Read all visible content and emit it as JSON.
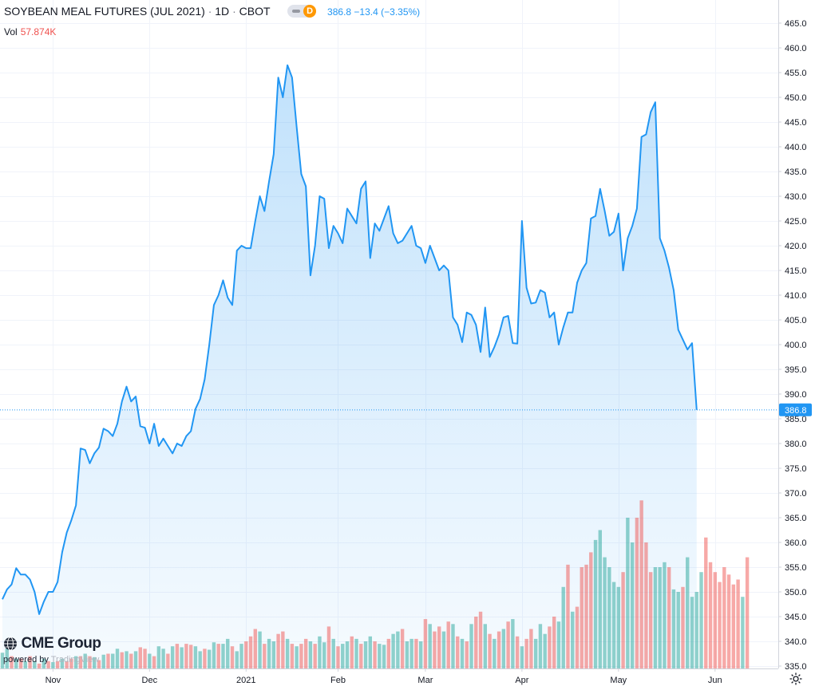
{
  "header": {
    "symbol": "SOYBEAN MEAL FUTURES (JUL 2021)",
    "interval": "1D",
    "exchange": "CBOT",
    "badge_letter": "D",
    "last": "386.8",
    "change": "−13.4",
    "change_pct": "(−3.35%)",
    "vol_label": "Vol",
    "vol_value": "57.874K"
  },
  "branding": {
    "logo_text": "CME Group",
    "powered_by": "powered by",
    "tradingview": "TradingView"
  },
  "colors": {
    "line": "#2196f3",
    "volume_up": "#26a69a",
    "volume_down": "#ef5350",
    "grid": "#f0f3fa"
  },
  "chart_data": {
    "type": "area",
    "title": "",
    "ylim": [
      334,
      467
    ],
    "grid": true,
    "y_ticks": [
      335,
      340,
      345,
      350,
      355,
      360,
      365,
      370,
      375,
      380,
      385,
      390,
      395,
      400,
      405,
      410,
      415,
      420,
      425,
      430,
      435,
      440,
      445,
      450,
      455,
      460,
      465
    ],
    "x_ticks": [
      "Nov",
      "Dec",
      "2021",
      "Feb",
      "Mar",
      "Apr",
      "May",
      "Jun"
    ],
    "x_tick_index": [
      11,
      32,
      53,
      73,
      92,
      113,
      134,
      155
    ],
    "last_value_label": "386.8",
    "series": [
      {
        "values": [
          348.5,
          350.5,
          351.5,
          354.8,
          353.5,
          353.5,
          352.5,
          350.0,
          345.5,
          348.0,
          350.0,
          350.0,
          352.0,
          358.0,
          362.0,
          364.5,
          367.5,
          379.0,
          378.7,
          376.0,
          378.0,
          379.2,
          383.0,
          382.5,
          381.5,
          384.0,
          388.5,
          391.5,
          388.5,
          389.5,
          383.5,
          383.2,
          380.0,
          384.0,
          379.5,
          381.0,
          379.5,
          378.0,
          380.0,
          379.5,
          381.5,
          382.5,
          387.0,
          389.0,
          393.0,
          400.0,
          408.0,
          410.0,
          413.0,
          409.5,
          408.0,
          419.0,
          420.0,
          419.5,
          419.5,
          425.0,
          430.0,
          427.0,
          433.0,
          438.5,
          454.0,
          450.0,
          456.5,
          454.0,
          444.0,
          434.5,
          432.0,
          414.0,
          420.0,
          430.0,
          429.5,
          419.5,
          424.0,
          422.5,
          420.5,
          427.5,
          426.0,
          424.5,
          431.5,
          433.0,
          417.5,
          424.5,
          423.0,
          425.5,
          428.0,
          422.5,
          420.5,
          421.0,
          422.5,
          424.0,
          420.0,
          419.5,
          416.5,
          420.0,
          417.5,
          415.0,
          416.0,
          415.0,
          405.5,
          404.0,
          400.5,
          406.5,
          406.0,
          404.0,
          398.5,
          407.5,
          397.5,
          399.5,
          402.0,
          405.5,
          405.8,
          400.3,
          400.2,
          425.0,
          411.5,
          408.3,
          408.5,
          411.0,
          410.5,
          405.5,
          406.5,
          400.0,
          403.5,
          406.5,
          406.5,
          412.5,
          415.0,
          416.5,
          425.5,
          426.0,
          431.5,
          427.0,
          422.0,
          422.8,
          426.5,
          415.0,
          421.5,
          424.0,
          427.5,
          442.0,
          442.5,
          447.0,
          449.0,
          421.5,
          419.0,
          415.5,
          411.0,
          403.0,
          401.0,
          399.0,
          400.3,
          386.8
        ]
      }
    ],
    "volume": [
      {
        "v": 337.7,
        "up": true
      },
      {
        "v": 338.5,
        "up": true
      },
      {
        "v": 337.0,
        "up": false
      },
      {
        "v": 336.5,
        "up": true
      },
      {
        "v": 336.5,
        "up": false
      },
      {
        "v": 336.0,
        "up": true
      },
      {
        "v": 337.0,
        "up": false
      },
      {
        "v": 336.0,
        "up": true
      },
      {
        "v": 335.5,
        "up": false
      },
      {
        "v": 336.5,
        "up": true
      },
      {
        "v": 336.0,
        "up": false
      },
      {
        "v": 335.8,
        "up": true
      },
      {
        "v": 336.0,
        "up": false
      },
      {
        "v": 336.5,
        "up": true
      },
      {
        "v": 336.0,
        "up": false
      },
      {
        "v": 336.5,
        "up": false
      },
      {
        "v": 337.0,
        "up": true
      },
      {
        "v": 337.0,
        "up": false
      },
      {
        "v": 337.5,
        "up": true
      },
      {
        "v": 337.0,
        "up": false
      },
      {
        "v": 336.8,
        "up": true
      },
      {
        "v": 336.2,
        "up": false
      },
      {
        "v": 337.3,
        "up": true
      },
      {
        "v": 337.5,
        "up": false
      },
      {
        "v": 337.5,
        "up": true
      },
      {
        "v": 338.5,
        "up": true
      },
      {
        "v": 337.8,
        "up": false
      },
      {
        "v": 338.0,
        "up": true
      },
      {
        "v": 337.5,
        "up": false
      },
      {
        "v": 338.0,
        "up": true
      },
      {
        "v": 338.8,
        "up": false
      },
      {
        "v": 338.5,
        "up": false
      },
      {
        "v": 337.5,
        "up": true
      },
      {
        "v": 337.0,
        "up": false
      },
      {
        "v": 339.0,
        "up": true
      },
      {
        "v": 338.5,
        "up": true
      },
      {
        "v": 337.5,
        "up": false
      },
      {
        "v": 339.0,
        "up": true
      },
      {
        "v": 339.5,
        "up": false
      },
      {
        "v": 338.8,
        "up": true
      },
      {
        "v": 339.5,
        "up": false
      },
      {
        "v": 339.3,
        "up": false
      },
      {
        "v": 339.0,
        "up": true
      },
      {
        "v": 338.0,
        "up": true
      },
      {
        "v": 338.5,
        "up": false
      },
      {
        "v": 338.3,
        "up": true
      },
      {
        "v": 339.8,
        "up": true
      },
      {
        "v": 339.5,
        "up": false
      },
      {
        "v": 339.5,
        "up": true
      },
      {
        "v": 340.5,
        "up": true
      },
      {
        "v": 339.0,
        "up": false
      },
      {
        "v": 338.0,
        "up": true
      },
      {
        "v": 339.5,
        "up": true
      },
      {
        "v": 340.0,
        "up": false
      },
      {
        "v": 341.0,
        "up": false
      },
      {
        "v": 342.5,
        "up": false
      },
      {
        "v": 342.0,
        "up": true
      },
      {
        "v": 339.5,
        "up": false
      },
      {
        "v": 340.5,
        "up": true
      },
      {
        "v": 340.0,
        "up": true
      },
      {
        "v": 341.5,
        "up": false
      },
      {
        "v": 342.0,
        "up": false
      },
      {
        "v": 340.5,
        "up": true
      },
      {
        "v": 339.5,
        "up": false
      },
      {
        "v": 339.0,
        "up": true
      },
      {
        "v": 339.5,
        "up": false
      },
      {
        "v": 340.5,
        "up": false
      },
      {
        "v": 340.0,
        "up": true
      },
      {
        "v": 339.5,
        "up": false
      },
      {
        "v": 341.0,
        "up": true
      },
      {
        "v": 339.8,
        "up": true
      },
      {
        "v": 343.0,
        "up": false
      },
      {
        "v": 340.5,
        "up": true
      },
      {
        "v": 339.0,
        "up": false
      },
      {
        "v": 339.5,
        "up": true
      },
      {
        "v": 340.0,
        "up": true
      },
      {
        "v": 341.0,
        "up": false
      },
      {
        "v": 340.5,
        "up": true
      },
      {
        "v": 339.5,
        "up": false
      },
      {
        "v": 340.0,
        "up": true
      },
      {
        "v": 341.0,
        "up": true
      },
      {
        "v": 340.0,
        "up": false
      },
      {
        "v": 339.5,
        "up": true
      },
      {
        "v": 339.3,
        "up": true
      },
      {
        "v": 340.5,
        "up": false
      },
      {
        "v": 341.5,
        "up": true
      },
      {
        "v": 342.0,
        "up": true
      },
      {
        "v": 342.5,
        "up": false
      },
      {
        "v": 340.0,
        "up": true
      },
      {
        "v": 340.5,
        "up": true
      },
      {
        "v": 340.5,
        "up": false
      },
      {
        "v": 340.0,
        "up": true
      },
      {
        "v": 344.5,
        "up": false
      },
      {
        "v": 343.5,
        "up": true
      },
      {
        "v": 342.0,
        "up": false
      },
      {
        "v": 343.0,
        "up": false
      },
      {
        "v": 342.0,
        "up": true
      },
      {
        "v": 344.0,
        "up": false
      },
      {
        "v": 343.5,
        "up": true
      },
      {
        "v": 341.0,
        "up": false
      },
      {
        "v": 340.5,
        "up": true
      },
      {
        "v": 340.0,
        "up": false
      },
      {
        "v": 343.5,
        "up": true
      },
      {
        "v": 345.0,
        "up": false
      },
      {
        "v": 346.0,
        "up": false
      },
      {
        "v": 343.5,
        "up": true
      },
      {
        "v": 341.5,
        "up": false
      },
      {
        "v": 340.5,
        "up": true
      },
      {
        "v": 342.0,
        "up": false
      },
      {
        "v": 342.5,
        "up": true
      },
      {
        "v": 344.0,
        "up": false
      },
      {
        "v": 344.5,
        "up": true
      },
      {
        "v": 341.0,
        "up": false
      },
      {
        "v": 339.0,
        "up": true
      },
      {
        "v": 340.5,
        "up": false
      },
      {
        "v": 342.5,
        "up": false
      },
      {
        "v": 340.5,
        "up": true
      },
      {
        "v": 343.5,
        "up": true
      },
      {
        "v": 341.5,
        "up": true
      },
      {
        "v": 343.0,
        "up": false
      },
      {
        "v": 345.0,
        "up": false
      },
      {
        "v": 344.0,
        "up": true
      },
      {
        "v": 351.0,
        "up": true
      },
      {
        "v": 355.5,
        "up": false
      },
      {
        "v": 346.0,
        "up": true
      },
      {
        "v": 347.0,
        "up": false
      },
      {
        "v": 355.0,
        "up": false
      },
      {
        "v": 355.5,
        "up": false
      },
      {
        "v": 358.0,
        "up": false
      },
      {
        "v": 360.5,
        "up": true
      },
      {
        "v": 362.5,
        "up": true
      },
      {
        "v": 357.0,
        "up": true
      },
      {
        "v": 355.0,
        "up": true
      },
      {
        "v": 352.0,
        "up": true
      },
      {
        "v": 351.0,
        "up": true
      },
      {
        "v": 354.0,
        "up": false
      },
      {
        "v": 365.0,
        "up": true
      },
      {
        "v": 360.0,
        "up": true
      },
      {
        "v": 365.0,
        "up": false
      },
      {
        "v": 368.5,
        "up": false
      },
      {
        "v": 360.0,
        "up": false
      },
      {
        "v": 354.0,
        "up": false
      },
      {
        "v": 355.0,
        "up": true
      },
      {
        "v": 355.0,
        "up": true
      },
      {
        "v": 356.0,
        "up": true
      },
      {
        "v": 355.0,
        "up": false
      },
      {
        "v": 350.5,
        "up": true
      },
      {
        "v": 350.0,
        "up": true
      },
      {
        "v": 351.0,
        "up": false
      },
      {
        "v": 357.0,
        "up": true
      },
      {
        "v": 349.0,
        "up": true
      },
      {
        "v": 350.0,
        "up": true
      },
      {
        "v": 354.0,
        "up": true
      },
      {
        "v": 361.0,
        "up": false
      },
      {
        "v": 356.0,
        "up": false
      },
      {
        "v": 354.0,
        "up": false
      },
      {
        "v": 352.0,
        "up": false
      },
      {
        "v": 355.0,
        "up": false
      },
      {
        "v": 353.5,
        "up": false
      },
      {
        "v": 351.5,
        "up": false
      },
      {
        "v": 352.5,
        "up": false
      },
      {
        "v": 349.0,
        "up": true
      },
      {
        "v": 357.0,
        "up": false
      }
    ]
  }
}
